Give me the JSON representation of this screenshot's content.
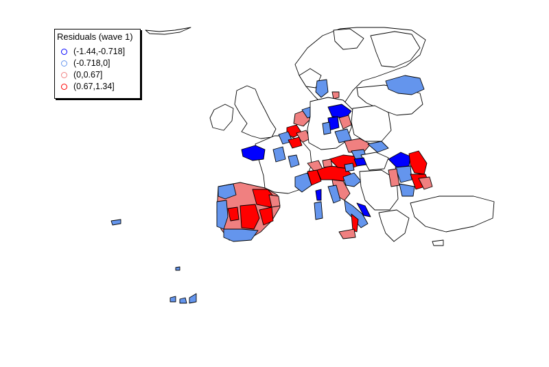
{
  "legend": {
    "title": "Residuals (wave 1)",
    "entries": [
      {
        "label": "(-1.44,-0.718]",
        "color": "#0000ff"
      },
      {
        "label": "(-0.718,0]",
        "color": "#6495ed"
      },
      {
        "label": "(0,0.67]",
        "color": "#f08080"
      },
      {
        "label": "(0.67,1.34]",
        "color": "#ff0000"
      }
    ]
  },
  "colors": {
    "none": "#ffffff",
    "class1": "#0000ff",
    "class2": "#6495ed",
    "class3": "#f08080",
    "class4": "#ff0000",
    "border": "#000000"
  }
}
